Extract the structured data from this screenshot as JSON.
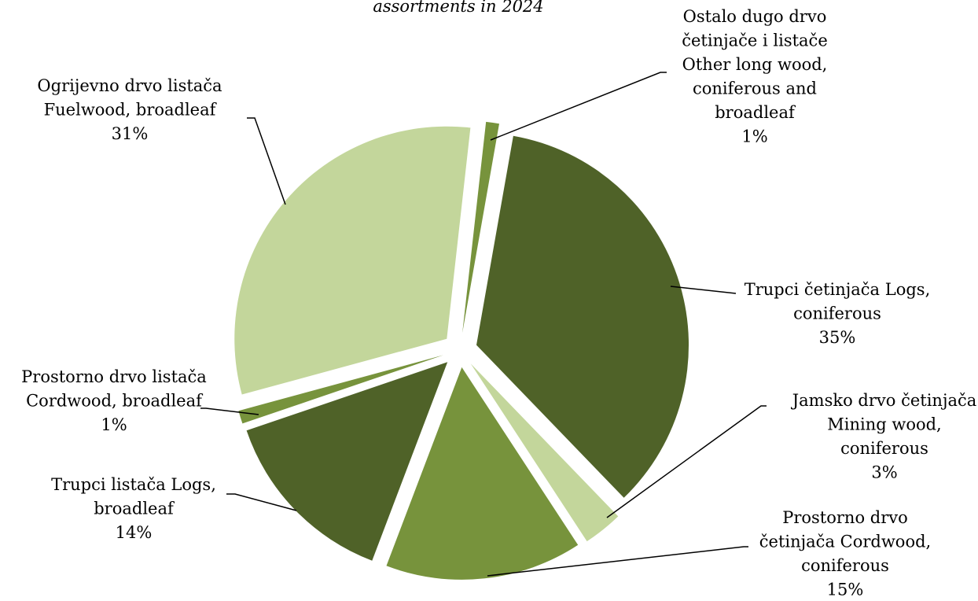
{
  "chart_data": {
    "type": "pie",
    "title": "assortments in 2024",
    "exploded": true,
    "slices": [
      {
        "label_lines": [
          "Trupci četinjača Logs,",
          "coniferous"
        ],
        "percent_label": "35%",
        "value": 35,
        "color": "#4f6228"
      },
      {
        "label_lines": [
          "Jamsko drvo četinjača",
          "Mining wood,",
          "coniferous"
        ],
        "percent_label": "3%",
        "value": 3,
        "color": "#c3d69b"
      },
      {
        "label_lines": [
          "Prostorno drvo",
          "četinjača Cordwood,",
          "coniferous"
        ],
        "percent_label": "15%",
        "value": 15,
        "color": "#77933c"
      },
      {
        "label_lines": [
          "Trupci listača Logs,",
          "broadleaf"
        ],
        "percent_label": "14%",
        "value": 14,
        "color": "#4f6228"
      },
      {
        "label_lines": [
          "Prostorno drvo listača",
          "Cordwood, broadleaf"
        ],
        "percent_label": "1%",
        "value": 1,
        "color": "#77933c"
      },
      {
        "label_lines": [
          "Ogrijevno drvo listača",
          "Fuelwood, broadleaf"
        ],
        "percent_label": "31%",
        "value": 31,
        "color": "#c3d69b"
      },
      {
        "label_lines": [
          "Ostalo dugo drvo",
          "četinjače i listače",
          "Other long wood,",
          "coniferous and",
          "broadleaf"
        ],
        "percent_label": "1%",
        "value": 1,
        "color": "#77933c"
      }
    ]
  }
}
